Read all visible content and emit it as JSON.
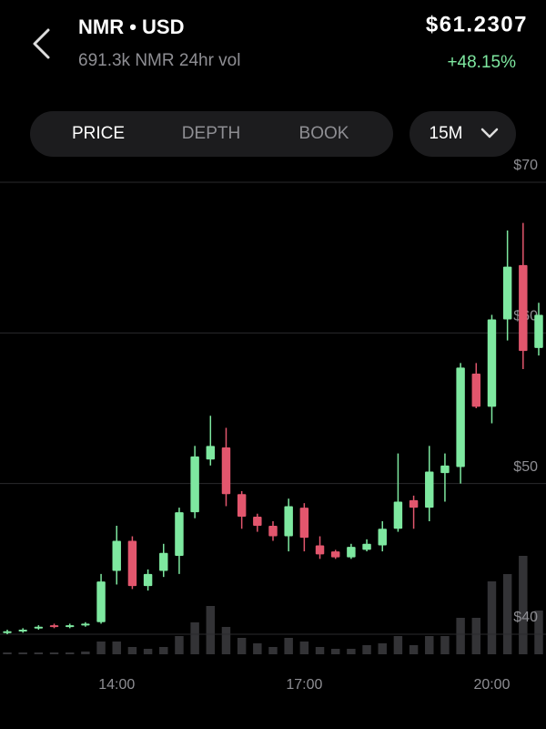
{
  "header": {
    "title": "NMR • USD",
    "subtitle": "691.3k NMR 24hr vol",
    "price": "$61.2307",
    "change": "+48.15%"
  },
  "tabs": [
    "PRICE",
    "DEPTH",
    "BOOK"
  ],
  "interval": "15M",
  "chart_data": {
    "type": "candlestick",
    "x": [
      12.25,
      12.5,
      12.75,
      13,
      13.25,
      13.5,
      13.75,
      14,
      14.25,
      14.5,
      14.75,
      15,
      15.25,
      15.5,
      15.75,
      16,
      16.25,
      16.5,
      16.75,
      17,
      17.25,
      17.5,
      17.75,
      18,
      18.25,
      18.5,
      18.75,
      19,
      19.25,
      19.5,
      19.75,
      20,
      20.25,
      20.5,
      20.75
    ],
    "open": [
      40.1,
      40.2,
      40.4,
      40.6,
      40.5,
      40.6,
      40.8,
      44.2,
      46.2,
      43.2,
      44.2,
      45.2,
      48.1,
      51.6,
      52.4,
      49.3,
      47.8,
      47.2,
      46.5,
      48.4,
      45.9,
      45.5,
      45.1,
      45.6,
      45.9,
      47.0,
      48.9,
      48.4,
      50.7,
      51.1,
      57.3,
      55.1,
      60.9,
      64.5,
      59.0
    ],
    "high": [
      40.3,
      40.4,
      40.6,
      40.7,
      40.7,
      40.8,
      44.0,
      47.2,
      46.5,
      44.3,
      46.0,
      48.4,
      52.5,
      54.5,
      53.7,
      49.5,
      48.0,
      47.5,
      49.0,
      48.7,
      46.5,
      45.6,
      46.0,
      46.3,
      47.5,
      52.0,
      49.2,
      52.5,
      52.0,
      58.0,
      58.0,
      61.2,
      66.8,
      67.3,
      62.0
    ],
    "low": [
      40.0,
      40.1,
      40.3,
      40.4,
      40.4,
      40.5,
      40.7,
      43.3,
      43.0,
      42.9,
      43.8,
      44.0,
      47.7,
      51.2,
      48.5,
      47.0,
      46.8,
      46.2,
      45.5,
      45.5,
      45.0,
      45.0,
      45.0,
      45.5,
      45.5,
      46.8,
      47.0,
      47.5,
      48.8,
      50.0,
      55.0,
      54.0,
      59.5,
      57.6,
      58.5
    ],
    "close": [
      40.2,
      40.3,
      40.5,
      40.5,
      40.6,
      40.7,
      43.5,
      46.2,
      43.2,
      44.0,
      45.4,
      48.1,
      51.8,
      52.5,
      49.3,
      47.8,
      47.2,
      46.5,
      48.5,
      46.4,
      45.3,
      45.1,
      45.8,
      46.0,
      47.0,
      48.8,
      48.4,
      50.8,
      51.2,
      57.7,
      55.1,
      60.9,
      64.4,
      58.8,
      61.2
    ],
    "volume": [
      2,
      2,
      2,
      2,
      2,
      3,
      14,
      14,
      8,
      6,
      8,
      20,
      35,
      53,
      30,
      18,
      12,
      8,
      18,
      14,
      8,
      6,
      6,
      10,
      12,
      20,
      10,
      20,
      20,
      40,
      40,
      80,
      88,
      108,
      48
    ],
    "volume_lim": [
      0,
      120
    ],
    "xlim": [
      12.25,
      20.75
    ],
    "xticks": [
      {
        "value": 14,
        "label": "14:00"
      },
      {
        "value": 17,
        "label": "17:00"
      },
      {
        "value": 20,
        "label": "20:00"
      }
    ],
    "ylim": [
      40,
      70
    ],
    "yticks": [
      {
        "value": 40,
        "label": "$40"
      },
      {
        "value": 50,
        "label": "$50"
      },
      {
        "value": 60,
        "label": "$60"
      },
      {
        "value": 70,
        "label": "$70"
      }
    ],
    "grid": true,
    "up_color": "#7ee8a0",
    "down_color": "#e2566d",
    "volume_color": "#333336"
  }
}
